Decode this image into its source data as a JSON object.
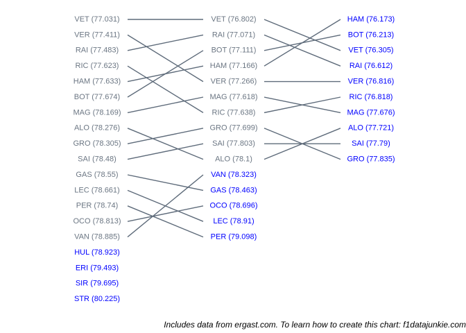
{
  "chart_data": {
    "type": "slopegraph",
    "columns": [
      {
        "items": [
          {
            "code": "VET",
            "time": "77.031",
            "eliminated": false
          },
          {
            "code": "VER",
            "time": "77.411",
            "eliminated": false
          },
          {
            "code": "RAI",
            "time": "77.483",
            "eliminated": false
          },
          {
            "code": "RIC",
            "time": "77.623",
            "eliminated": false
          },
          {
            "code": "HAM",
            "time": "77.633",
            "eliminated": false
          },
          {
            "code": "BOT",
            "time": "77.674",
            "eliminated": false
          },
          {
            "code": "MAG",
            "time": "78.169",
            "eliminated": false
          },
          {
            "code": "ALO",
            "time": "78.276",
            "eliminated": false
          },
          {
            "code": "GRO",
            "time": "78.305",
            "eliminated": false
          },
          {
            "code": "SAI",
            "time": "78.48",
            "eliminated": false
          },
          {
            "code": "GAS",
            "time": "78.55",
            "eliminated": false
          },
          {
            "code": "LEC",
            "time": "78.661",
            "eliminated": false
          },
          {
            "code": "PER",
            "time": "78.74",
            "eliminated": false
          },
          {
            "code": "OCO",
            "time": "78.813",
            "eliminated": false
          },
          {
            "code": "VAN",
            "time": "78.885",
            "eliminated": false
          },
          {
            "code": "HUL",
            "time": "78.923",
            "eliminated": true
          },
          {
            "code": "ERI",
            "time": "79.493",
            "eliminated": true
          },
          {
            "code": "SIR",
            "time": "79.695",
            "eliminated": true
          },
          {
            "code": "STR",
            "time": "80.225",
            "eliminated": true
          }
        ]
      },
      {
        "items": [
          {
            "code": "VET",
            "time": "76.802",
            "eliminated": false
          },
          {
            "code": "RAI",
            "time": "77.071",
            "eliminated": false
          },
          {
            "code": "BOT",
            "time": "77.111",
            "eliminated": false
          },
          {
            "code": "HAM",
            "time": "77.166",
            "eliminated": false
          },
          {
            "code": "VER",
            "time": "77.266",
            "eliminated": false
          },
          {
            "code": "MAG",
            "time": "77.618",
            "eliminated": false
          },
          {
            "code": "RIC",
            "time": "77.638",
            "eliminated": false
          },
          {
            "code": "GRO",
            "time": "77.699",
            "eliminated": false
          },
          {
            "code": "SAI",
            "time": "77.803",
            "eliminated": false
          },
          {
            "code": "ALO",
            "time": "78.1",
            "eliminated": false
          },
          {
            "code": "VAN",
            "time": "78.323",
            "eliminated": true
          },
          {
            "code": "GAS",
            "time": "78.463",
            "eliminated": true
          },
          {
            "code": "OCO",
            "time": "78.696",
            "eliminated": true
          },
          {
            "code": "LEC",
            "time": "78.91",
            "eliminated": true
          },
          {
            "code": "PER",
            "time": "79.098",
            "eliminated": true
          }
        ]
      },
      {
        "items": [
          {
            "code": "HAM",
            "time": "76.173",
            "eliminated": true
          },
          {
            "code": "BOT",
            "time": "76.213",
            "eliminated": true
          },
          {
            "code": "VET",
            "time": "76.305",
            "eliminated": true
          },
          {
            "code": "RAI",
            "time": "76.612",
            "eliminated": true
          },
          {
            "code": "VER",
            "time": "76.816",
            "eliminated": true
          },
          {
            "code": "RIC",
            "time": "76.818",
            "eliminated": true
          },
          {
            "code": "MAG",
            "time": "77.676",
            "eliminated": true
          },
          {
            "code": "ALO",
            "time": "77.721",
            "eliminated": true
          },
          {
            "code": "SAI",
            "time": "77.79",
            "eliminated": true
          },
          {
            "code": "GRO",
            "time": "77.835",
            "eliminated": true
          }
        ]
      }
    ],
    "colors": {
      "advanced": "#6b7683",
      "eliminated": "#0000ff",
      "line": "#5e6b7a"
    }
  },
  "caption": "Includes data from ergast.com. To learn how to create this chart: f1datajunkie.com"
}
